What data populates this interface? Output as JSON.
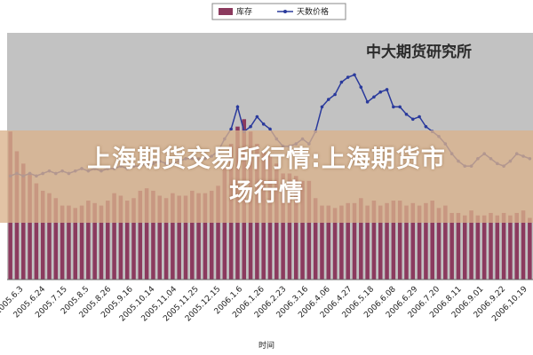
{
  "banner": {
    "line1": "上海期货交易所行情:上海期货市",
    "line2": "场行情"
  },
  "chart_data": {
    "type": "bar",
    "title": "",
    "watermark": "中大期货研究所",
    "xlabel": "时间",
    "ylabel": "",
    "legend": {
      "placement": "top-center",
      "entries": [
        {
          "name": "库存",
          "kind": "bar",
          "color": "#8b3a5e"
        },
        {
          "name": "天数价格",
          "kind": "line",
          "color": "#2a3a9c"
        }
      ]
    },
    "grid": false,
    "colors": {
      "plot_bg": "#c2c2c2",
      "bar": "#8b3a5e",
      "line": "#2a3a9c"
    },
    "ylim": [
      0,
      100
    ],
    "tick_labels": [
      "2005.6.3",
      "2005.6.24",
      "2005.7.15",
      "2005.8.5",
      "2005.8.26",
      "2005.9.16",
      "2005.10.14",
      "2005.11.04",
      "2005.11.25",
      "2005.12.15",
      "2006.1.6",
      "2006.1.26",
      "2006.2.23",
      "2006.3.16",
      "2006.4.06",
      "2006.4.27",
      "2006.5.18",
      "2006.6.08",
      "2006.6.29",
      "2006.7.20",
      "2006.8.11",
      "2006.9.01",
      "2006.9.22",
      "2006.10.19"
    ],
    "series": [
      {
        "name": "库存",
        "type": "bar",
        "values": [
          60,
          52,
          47,
          43,
          39,
          36,
          35,
          33,
          30,
          30,
          29,
          30,
          32,
          31,
          30,
          32,
          35,
          34,
          32,
          33,
          36,
          37,
          36,
          34,
          33,
          35,
          34,
          34,
          36,
          35,
          35,
          36,
          38,
          45,
          55,
          62,
          65,
          60,
          55,
          52,
          50,
          47,
          43,
          43,
          42,
          40,
          40,
          33,
          30,
          30,
          29,
          30,
          31,
          31,
          33,
          30,
          32,
          30,
          31,
          32,
          32,
          30,
          31,
          30,
          31,
          32,
          29,
          30,
          27,
          27,
          26,
          28,
          26,
          26,
          27,
          26,
          27,
          26,
          27,
          28,
          25
        ]
      },
      {
        "name": "天数价格",
        "type": "line",
        "values": [
          42,
          43,
          42,
          43,
          42,
          43,
          44,
          43,
          44,
          43,
          44,
          45,
          44,
          45,
          44,
          45,
          45,
          46,
          45,
          46,
          46,
          47,
          47,
          48,
          47,
          47,
          48,
          49,
          49,
          49,
          49,
          50,
          52,
          57,
          61,
          70,
          60,
          62,
          66,
          63,
          61,
          57,
          54,
          54,
          55,
          57,
          55,
          60,
          70,
          73,
          75,
          80,
          82,
          83,
          78,
          72,
          74,
          76,
          77,
          70,
          70,
          67,
          65,
          66,
          62,
          60,
          58,
          55,
          51,
          48,
          46,
          46,
          49,
          51,
          49,
          47,
          46,
          48,
          51,
          50,
          49
        ]
      }
    ]
  }
}
